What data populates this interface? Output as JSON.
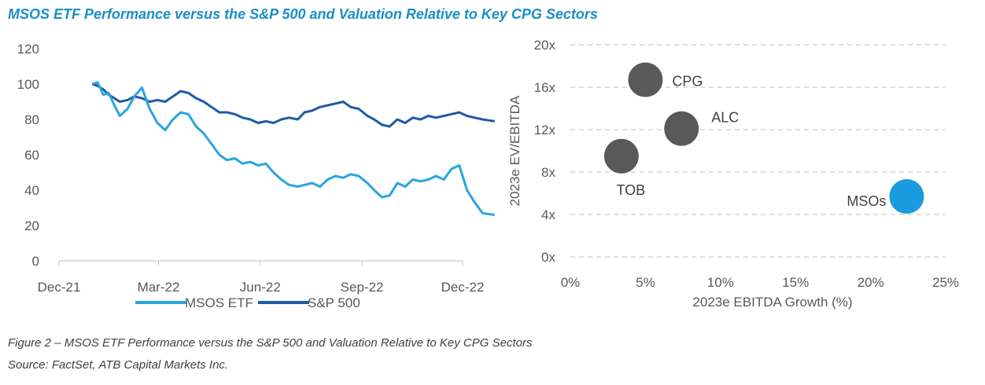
{
  "header": {
    "title": "MSOS ETF Performance versus the S&P 500 and Valuation Relative to Key CPG Sectors"
  },
  "footer": {
    "caption": "Figure 2 – MSOS ETF Performance versus the S&P 500 and Valuation Relative to Key CPG Sectors",
    "source": "Source: FactSet, ATB Capital Markets Inc."
  },
  "chart_data": [
    {
      "type": "line",
      "title": "",
      "xlabel": "",
      "ylabel": "",
      "x_tick_labels": [
        "Dec-21",
        "Mar-22",
        "Jun-22",
        "Sep-22",
        "Dec-22"
      ],
      "y_tick_labels": [
        "0",
        "20",
        "40",
        "60",
        "80",
        "100",
        "120"
      ],
      "ylim": [
        0,
        120
      ],
      "x": [
        "2021-12-31",
        "2022-01-05",
        "2022-01-10",
        "2022-01-15",
        "2022-01-20",
        "2022-01-25",
        "2022-02-01",
        "2022-02-07",
        "2022-02-14",
        "2022-02-21",
        "2022-02-28",
        "2022-03-07",
        "2022-03-14",
        "2022-03-21",
        "2022-03-28",
        "2022-04-04",
        "2022-04-11",
        "2022-04-18",
        "2022-04-25",
        "2022-05-02",
        "2022-05-09",
        "2022-05-16",
        "2022-05-23",
        "2022-05-30",
        "2022-06-06",
        "2022-06-13",
        "2022-06-20",
        "2022-06-27",
        "2022-07-05",
        "2022-07-11",
        "2022-07-18",
        "2022-07-25",
        "2022-08-01",
        "2022-08-08",
        "2022-08-15",
        "2022-08-22",
        "2022-08-29",
        "2022-09-06",
        "2022-09-12",
        "2022-09-19",
        "2022-09-26",
        "2022-10-03",
        "2022-10-10",
        "2022-10-17",
        "2022-10-24",
        "2022-10-31",
        "2022-11-07",
        "2022-11-14",
        "2022-11-21",
        "2022-11-28",
        "2022-12-05",
        "2022-12-12",
        "2022-12-19",
        "2022-12-30"
      ],
      "series": [
        {
          "name": "MSOS ETF",
          "color": "#2aa4e0",
          "values": [
            100,
            101,
            94,
            95,
            88,
            82,
            86,
            93,
            98,
            86,
            78,
            74,
            80,
            84,
            83,
            76,
            72,
            66,
            60,
            57,
            58,
            55,
            56,
            54,
            55,
            50,
            46,
            43,
            42,
            43,
            44,
            42,
            46,
            48,
            47,
            49,
            48,
            44,
            40,
            36,
            37,
            44,
            42,
            46,
            45,
            46,
            48,
            46,
            52,
            54,
            40,
            33,
            27,
            26
          ]
        },
        {
          "name": "S&P 500",
          "color": "#1f5aa8",
          "values": [
            100,
            99,
            97,
            94,
            92,
            90,
            91,
            93,
            92,
            90,
            91,
            90,
            93,
            96,
            95,
            92,
            90,
            87,
            84,
            84,
            83,
            81,
            80,
            78,
            79,
            78,
            80,
            81,
            80,
            84,
            85,
            87,
            88,
            89,
            90,
            87,
            86,
            82,
            80,
            77,
            76,
            80,
            78,
            81,
            80,
            82,
            81,
            82,
            83,
            84,
            82,
            81,
            80,
            79
          ]
        }
      ],
      "legend": "bottom"
    },
    {
      "type": "scatter",
      "title": "",
      "xlabel": "2023e EBITDA Growth (%)",
      "ylabel": "2023e EV/EBITDA",
      "x_tick_labels": [
        "0%",
        "5%",
        "10%",
        "15%",
        "20%",
        "25%"
      ],
      "y_tick_labels": [
        "0x",
        "4x",
        "8x",
        "12x",
        "16x",
        "20x"
      ],
      "xlim": [
        0,
        25
      ],
      "ylim": [
        0,
        20
      ],
      "grid": "horizontal dashed",
      "points": [
        {
          "label": "CPG",
          "x": 5.0,
          "y": 16.7,
          "color": "#595959"
        },
        {
          "label": "ALC",
          "x": 7.4,
          "y": 12.1,
          "color": "#595959"
        },
        {
          "label": "TOB",
          "x": 3.4,
          "y": 9.5,
          "color": "#595959"
        },
        {
          "label": "MSOs",
          "x": 22.4,
          "y": 5.7,
          "color": "#1a9be0"
        }
      ]
    }
  ]
}
